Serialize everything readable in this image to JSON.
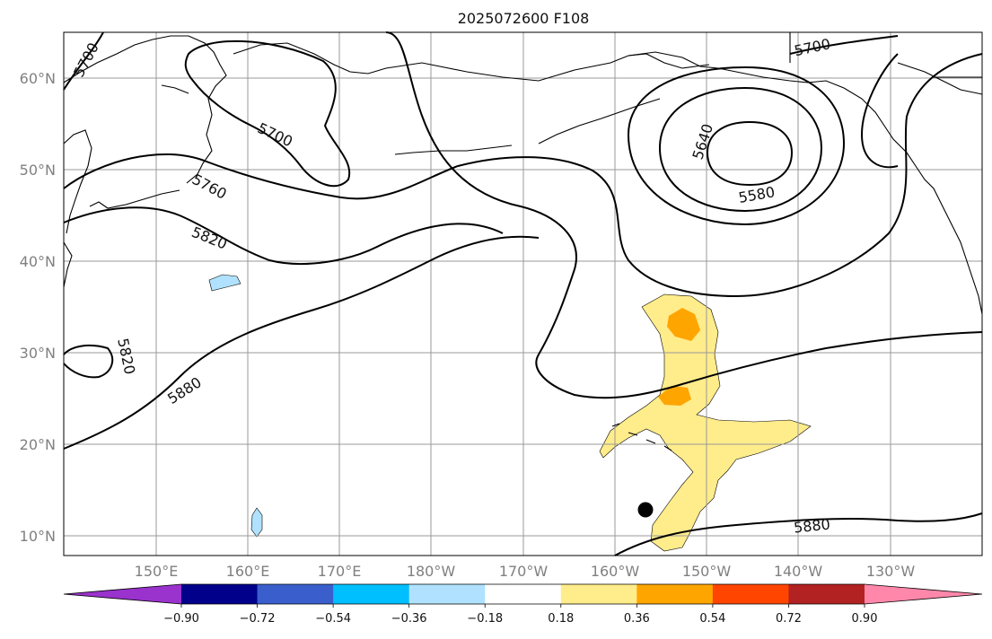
{
  "title": "2025072600 F108",
  "lat_labels": [
    "60°N",
    "50°N",
    "40°N",
    "30°N",
    "20°N",
    "10°N"
  ],
  "lon_labels": [
    "150°E",
    "160°E",
    "170°E",
    "180°W",
    "170°W",
    "160°W",
    "150°W",
    "140°W",
    "130°W"
  ],
  "contour_labels": {
    "c5700_nw": "5700",
    "c5700_mid": "5700",
    "c5700_ne": "5700",
    "c5760": "5760",
    "c5820_w": "5820",
    "c5820_sw": "5820",
    "c5880_w": "5880",
    "c5880_se": "5880",
    "c5640": "5640",
    "c5580": "5580"
  },
  "colorbar": {
    "labels": [
      "−0.90",
      "−0.72",
      "−0.54",
      "−0.36",
      "−0.18",
      "0.18",
      "0.36",
      "0.54",
      "0.72",
      "0.90"
    ],
    "colors": [
      "#9a32cd",
      "#00008b",
      "#3a5fcd",
      "#00bfff",
      "#b0e2ff",
      "#ffffff",
      "#ffec8b",
      "#ffa500",
      "#ff4500",
      "#b22222",
      "#ff88aa"
    ]
  },
  "colors": {
    "light_yellow": "#ffec8b",
    "orange": "#ffa500",
    "light_blue": "#b0e2ff"
  },
  "marker": "storm-center-dot"
}
